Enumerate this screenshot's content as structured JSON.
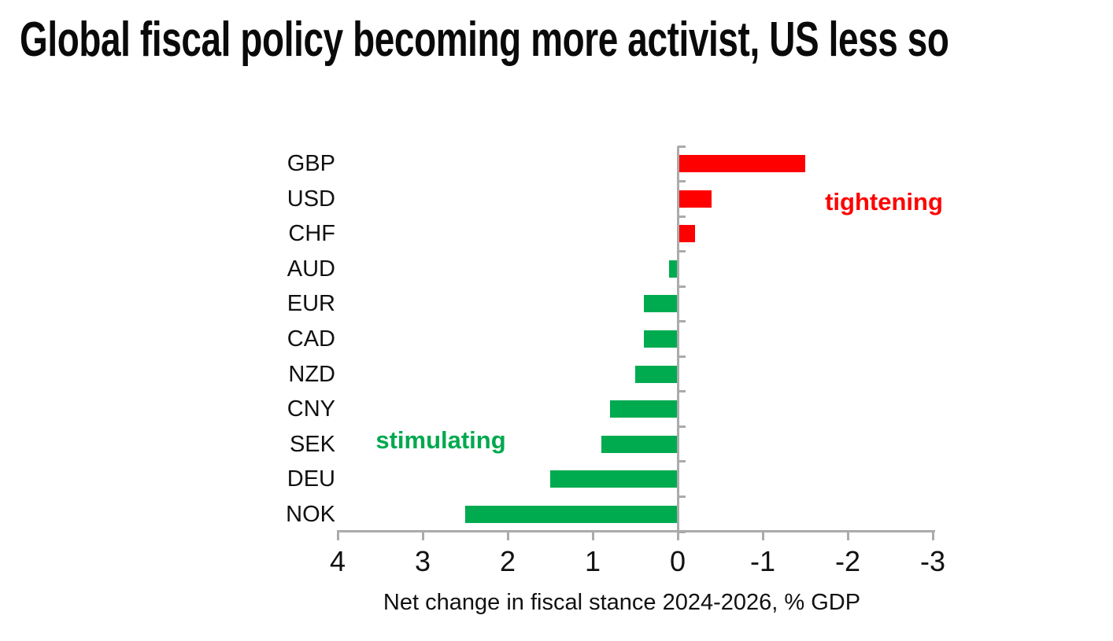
{
  "title": "Global fiscal policy becoming more activist, US less so",
  "chart_data": {
    "type": "bar",
    "orientation": "horizontal",
    "title": "Global fiscal policy becoming more activist, US less so",
    "xlabel": "Net change in fiscal stance 2024-2026, % GDP",
    "ylabel": "",
    "categories": [
      "GBP",
      "USD",
      "CHF",
      "AUD",
      "EUR",
      "CAD",
      "NZD",
      "CNY",
      "SEK",
      "DEU",
      "NOK"
    ],
    "values": [
      -1.5,
      -0.4,
      -0.2,
      0.1,
      0.4,
      0.4,
      0.5,
      0.8,
      0.9,
      1.5,
      2.5
    ],
    "x_ticks": [
      "4",
      "3",
      "2",
      "1",
      "0",
      "-1",
      "-2",
      "-3"
    ],
    "x_tick_values": [
      4,
      3,
      2,
      1,
      0,
      -1,
      -2,
      -3
    ],
    "xlim": [
      4,
      -3
    ],
    "x_axis_reversed": true,
    "grid": false,
    "legend": "none",
    "colors": {
      "positive_bar": "#00AB50",
      "negative_bar": "#FF0000",
      "axis": "#ABABAB",
      "text": "#111111"
    },
    "annotations": [
      {
        "text": "tightening",
        "color": "#FF0000",
        "near_category": "USD",
        "side": "right-of-bars"
      },
      {
        "text": "stimulating",
        "color": "#00A94E",
        "near_category": "SEK",
        "side": "left-of-bars"
      }
    ]
  },
  "annotations": {
    "tightening": "tightening",
    "stimulating": "stimulating"
  }
}
